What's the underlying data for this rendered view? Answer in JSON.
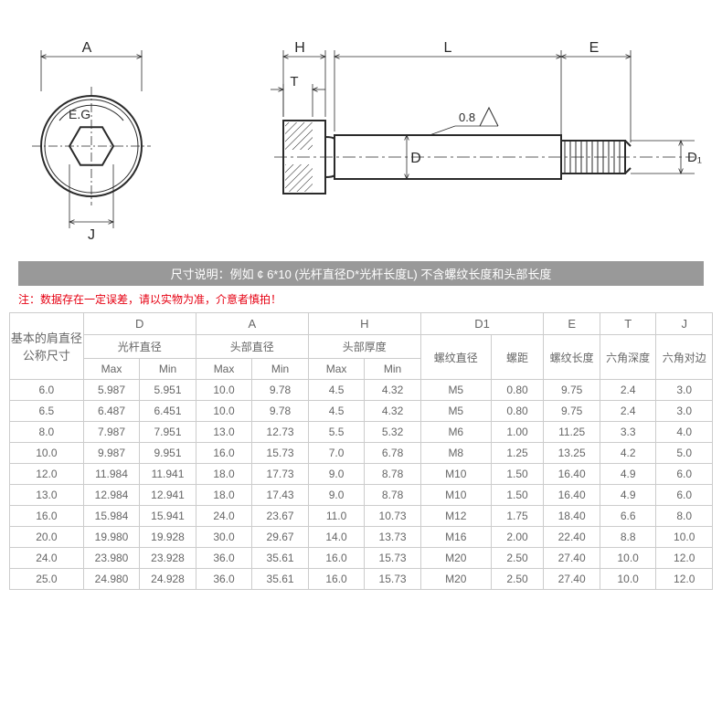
{
  "diagram": {
    "top_view": {
      "label_A": "A",
      "label_J": "J",
      "hex_label": "E.G"
    },
    "side_view": {
      "label_H": "H",
      "label_T": "T",
      "label_L": "L",
      "label_E": "E",
      "label_D": "D",
      "label_D1": "D₁",
      "surface_mark": "0.8"
    },
    "colors": {
      "line": "#2a2a2a",
      "hatch": "#2a2a2a",
      "bg": "#ffffff"
    }
  },
  "note_bar": "尺寸说明：例如 ¢ 6*10 (光杆直径D*光杆长度L) 不含螺纹长度和头部长度",
  "warning": "注：数据存在一定误差，请以实物为准，介意者慎拍！",
  "table": {
    "col_widths_pct": [
      10.5,
      8,
      8,
      8,
      8,
      8,
      8,
      10,
      7.5,
      8,
      8,
      8
    ],
    "header_row1": [
      "基本的肩直径公称尺寸",
      "D",
      "A",
      "H",
      "D1",
      "E",
      "T",
      "J"
    ],
    "header_row2_labels": {
      "D": "光杆直径",
      "A": "头部直径",
      "H": "头部厚度",
      "D1_diameter": "螺纹直径",
      "D1_pitch": "螺距",
      "E": "螺纹长度",
      "T": "六角深度",
      "J": "六角对边"
    },
    "maxmin": {
      "Max": "Max",
      "Min": "Min"
    },
    "rows": [
      [
        "6.0",
        "5.987",
        "5.951",
        "10.0",
        "9.78",
        "4.5",
        "4.32",
        "M5",
        "0.80",
        "9.75",
        "2.4",
        "3.0"
      ],
      [
        "6.5",
        "6.487",
        "6.451",
        "10.0",
        "9.78",
        "4.5",
        "4.32",
        "M5",
        "0.80",
        "9.75",
        "2.4",
        "3.0"
      ],
      [
        "8.0",
        "7.987",
        "7.951",
        "13.0",
        "12.73",
        "5.5",
        "5.32",
        "M6",
        "1.00",
        "11.25",
        "3.3",
        "4.0"
      ],
      [
        "10.0",
        "9.987",
        "9.951",
        "16.0",
        "15.73",
        "7.0",
        "6.78",
        "M8",
        "1.25",
        "13.25",
        "4.2",
        "5.0"
      ],
      [
        "12.0",
        "11.984",
        "11.941",
        "18.0",
        "17.73",
        "9.0",
        "8.78",
        "M10",
        "1.50",
        "16.40",
        "4.9",
        "6.0"
      ],
      [
        "13.0",
        "12.984",
        "12.941",
        "18.0",
        "17.43",
        "9.0",
        "8.78",
        "M10",
        "1.50",
        "16.40",
        "4.9",
        "6.0"
      ],
      [
        "16.0",
        "15.984",
        "15.941",
        "24.0",
        "23.67",
        "11.0",
        "10.73",
        "M12",
        "1.75",
        "18.40",
        "6.6",
        "8.0"
      ],
      [
        "20.0",
        "19.980",
        "19.928",
        "30.0",
        "29.67",
        "14.0",
        "13.73",
        "M16",
        "2.00",
        "22.40",
        "8.8",
        "10.0"
      ],
      [
        "24.0",
        "23.980",
        "23.928",
        "36.0",
        "35.61",
        "16.0",
        "15.73",
        "M20",
        "2.50",
        "27.40",
        "10.0",
        "12.0"
      ],
      [
        "25.0",
        "24.980",
        "24.928",
        "36.0",
        "35.61",
        "16.0",
        "15.73",
        "M20",
        "2.50",
        "27.40",
        "10.0",
        "12.0"
      ]
    ]
  },
  "style": {
    "note_bar_bg": "#999999",
    "note_bar_color": "#ffffff",
    "warning_color": "#e60012",
    "border_color": "#cccccc",
    "cell_color": "#666666",
    "cell_fontsize": 12
  }
}
